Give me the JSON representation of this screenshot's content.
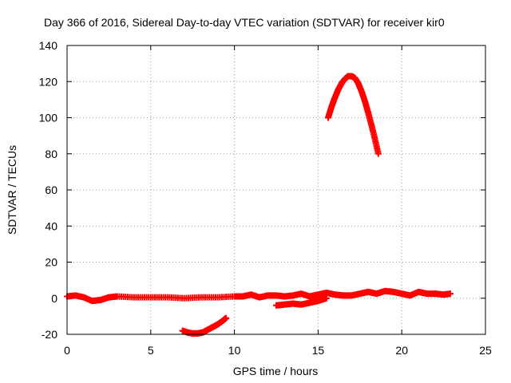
{
  "chart_data": {
    "type": "scatter",
    "title": "Day 366 of 2016, Sidereal Day-to-day VTEC variation (SDTVAR) for receiver kir0",
    "xlabel": "GPS time / hours",
    "ylabel": "SDTVAR / TECUs",
    "xlim": [
      0,
      25
    ],
    "ylim": [
      -20,
      140
    ],
    "xticks": [
      "0",
      "5",
      "10",
      "15",
      "20",
      "25"
    ],
    "yticks": [
      "-20",
      "0",
      "20",
      "40",
      "60",
      "80",
      "100",
      "120",
      "140"
    ],
    "grid": true,
    "marker": "plus",
    "color": "#ff0000",
    "series": [
      {
        "name": "baseline",
        "x": [
          0.0,
          0.5,
          1.0,
          1.5,
          2.0,
          2.5,
          3.0,
          4.0,
          5.0,
          6.0,
          7.0,
          8.0,
          9.0,
          10.0,
          10.5,
          11.0,
          11.5,
          12.0,
          12.5,
          13.0,
          13.5,
          14.0,
          14.5,
          15.0,
          15.5,
          16.0,
          16.5,
          17.0,
          17.5,
          18.0,
          18.5,
          19.0,
          19.5,
          20.0,
          20.5,
          21.0,
          21.5,
          22.0,
          22.5,
          22.9
        ],
        "y": [
          1.0,
          1.5,
          0.5,
          -1.5,
          -1.0,
          0.5,
          1.0,
          0.5,
          0.5,
          0.5,
          0.0,
          0.5,
          0.5,
          1.0,
          1.0,
          2.0,
          0.5,
          1.5,
          1.5,
          1.0,
          1.5,
          2.5,
          1.0,
          2.0,
          3.0,
          2.0,
          1.5,
          1.5,
          2.5,
          3.5,
          2.5,
          4.0,
          3.5,
          2.5,
          1.5,
          3.5,
          2.5,
          2.5,
          2.0,
          2.5
        ]
      },
      {
        "name": "lower-segment",
        "x": [
          12.5,
          13.0,
          13.5,
          14.0,
          14.5,
          15.0,
          15.5
        ],
        "y": [
          -4.0,
          -3.5,
          -3.0,
          -3.5,
          -2.5,
          -1.5,
          0.0
        ]
      },
      {
        "name": "dip-arc",
        "x": [
          6.9,
          7.2,
          7.5,
          7.8,
          8.1,
          8.4,
          8.7,
          9.0,
          9.3,
          9.5
        ],
        "y": [
          -18.0,
          -19.0,
          -19.5,
          -19.5,
          -19.0,
          -17.5,
          -16.0,
          -14.5,
          -12.5,
          -11.0
        ]
      },
      {
        "name": "peak-arc",
        "x": [
          15.6,
          15.8,
          16.0,
          16.2,
          16.4,
          16.6,
          16.8,
          17.0,
          17.2,
          17.4,
          17.6,
          17.8,
          18.0,
          18.2,
          18.4,
          18.6
        ],
        "y": [
          100.0,
          106.0,
          111.0,
          115.5,
          119.0,
          121.5,
          123.0,
          123.0,
          122.0,
          119.0,
          114.5,
          109.0,
          102.5,
          95.5,
          88.0,
          80.0
        ]
      }
    ]
  }
}
